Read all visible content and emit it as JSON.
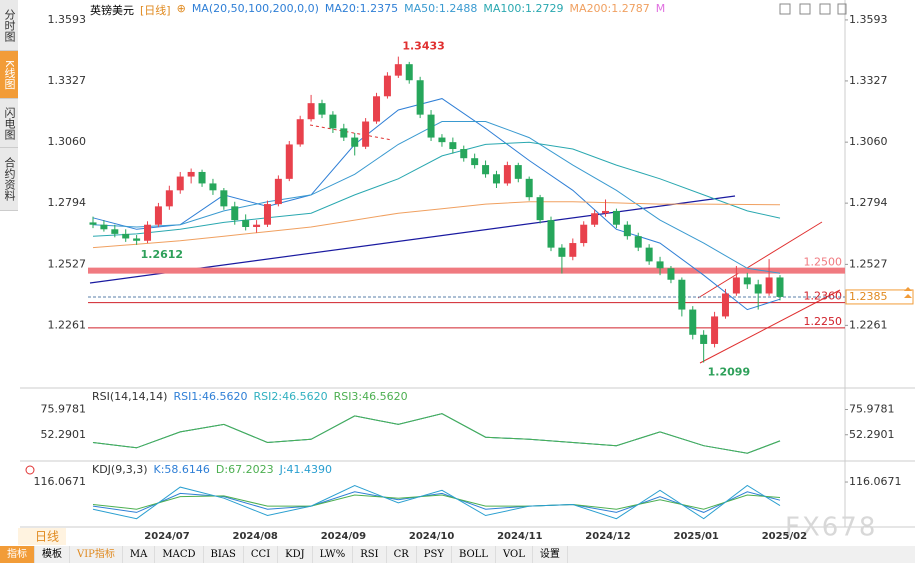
{
  "header": {
    "symbol": "英镑美元",
    "period": "[日线]",
    "indicator": "MA(20,50,100,200,0,0)"
  },
  "sidebar": [
    "分时图",
    "K线图",
    "闪电图",
    "合约资料"
  ],
  "period_label": "日线",
  "toolbar": [
    "指标",
    "模板",
    "VIP指标",
    "MA",
    "MACD",
    "BIAS",
    "CCI",
    "KDJ",
    "LW%",
    "RSI",
    "CR",
    "PSY",
    "BOLL",
    "VOL",
    "设置"
  ],
  "watermark": "FX678",
  "chart_data": [
    {
      "type": "candlestick",
      "up_color": "#e8414c",
      "down_color": "#26a65b",
      "ylim": [
        1.2001,
        1.3645
      ],
      "yticks": [
        1.3593,
        1.3327,
        {
          "value": 1.306,
          "label": "1.3060"
        },
        1.2794,
        1.2527,
        1.2261
      ],
      "categories": [
        "2024/07",
        "2024/08",
        "2024/09",
        "2024/10",
        "2024/11",
        "2024/12",
        "2025/01",
        "2025/02"
      ],
      "candles": [
        [
          1.271,
          1.2735,
          1.2685,
          1.27
        ],
        [
          1.27,
          1.272,
          1.267,
          1.268
        ],
        [
          1.268,
          1.27,
          1.2645,
          1.266
        ],
        [
          1.266,
          1.268,
          1.2625,
          1.264
        ],
        [
          1.264,
          1.2655,
          1.2612,
          1.263
        ],
        [
          1.263,
          1.2715,
          1.262,
          1.27
        ],
        [
          1.27,
          1.2795,
          1.269,
          1.278
        ],
        [
          1.278,
          1.287,
          1.2765,
          1.285
        ],
        [
          1.285,
          1.293,
          1.2835,
          1.291
        ],
        [
          1.291,
          1.2945,
          1.288,
          1.293
        ],
        [
          1.293,
          1.294,
          1.2865,
          1.288
        ],
        [
          1.288,
          1.29,
          1.283,
          1.285
        ],
        [
          1.285,
          1.286,
          1.2765,
          1.278
        ],
        [
          1.278,
          1.28,
          1.27,
          1.272
        ],
        [
          1.272,
          1.2745,
          1.2675,
          1.269
        ],
        [
          1.269,
          1.272,
          1.2665,
          1.27
        ],
        [
          1.27,
          1.2805,
          1.269,
          1.279
        ],
        [
          1.279,
          1.2915,
          1.278,
          1.29
        ],
        [
          1.29,
          1.3065,
          1.289,
          1.305
        ],
        [
          1.305,
          1.3175,
          1.304,
          1.316
        ],
        [
          1.316,
          1.3266,
          1.315,
          1.323
        ],
        [
          1.323,
          1.3245,
          1.3165,
          1.318
        ],
        [
          1.318,
          1.3195,
          1.31,
          1.312
        ],
        [
          1.312,
          1.314,
          1.3065,
          1.308
        ],
        [
          1.308,
          1.31,
          1.3002,
          1.304
        ],
        [
          1.304,
          1.3165,
          1.303,
          1.315
        ],
        [
          1.315,
          1.3275,
          1.314,
          1.326
        ],
        [
          1.326,
          1.3365,
          1.325,
          1.335
        ],
        [
          1.335,
          1.3433,
          1.334,
          1.34
        ],
        [
          1.34,
          1.341,
          1.3315,
          1.333
        ],
        [
          1.333,
          1.3345,
          1.3165,
          1.318
        ],
        [
          1.318,
          1.32,
          1.3065,
          1.308
        ],
        [
          1.308,
          1.3095,
          1.304,
          1.306
        ],
        [
          1.306,
          1.308,
          1.301,
          1.303
        ],
        [
          1.303,
          1.3045,
          1.2975,
          1.299
        ],
        [
          1.299,
          1.301,
          1.2945,
          1.296
        ],
        [
          1.296,
          1.298,
          1.2905,
          1.292
        ],
        [
          1.292,
          1.2935,
          1.286,
          1.288
        ],
        [
          1.288,
          1.2975,
          1.287,
          1.296
        ],
        [
          1.296,
          1.297,
          1.2885,
          1.29
        ],
        [
          1.29,
          1.291,
          1.2805,
          1.282
        ],
        [
          1.282,
          1.283,
          1.2705,
          1.272
        ],
        [
          1.272,
          1.2735,
          1.2585,
          1.26
        ],
        [
          1.26,
          1.2615,
          1.2487,
          1.256
        ],
        [
          1.256,
          1.264,
          1.2545,
          1.262
        ],
        [
          1.262,
          1.2715,
          1.2605,
          1.27
        ],
        [
          1.27,
          1.2765,
          1.269,
          1.275
        ],
        [
          1.275,
          1.281,
          1.2735,
          1.276
        ],
        [
          1.276,
          1.277,
          1.2685,
          1.27
        ],
        [
          1.27,
          1.2715,
          1.2635,
          1.265
        ],
        [
          1.265,
          1.2665,
          1.2585,
          1.26
        ],
        [
          1.26,
          1.2615,
          1.2525,
          1.254
        ],
        [
          1.254,
          1.256,
          1.248,
          1.251
        ],
        [
          1.251,
          1.252,
          1.2445,
          1.246
        ],
        [
          1.246,
          1.247,
          1.23,
          1.233
        ],
        [
          1.233,
          1.2345,
          1.22,
          1.222
        ],
        [
          1.222,
          1.224,
          1.2099,
          1.218
        ],
        [
          1.218,
          1.232,
          1.2165,
          1.23
        ],
        [
          1.23,
          1.242,
          1.229,
          1.24
        ],
        [
          1.24,
          1.252,
          1.239,
          1.247
        ],
        [
          1.247,
          1.249,
          1.242,
          1.244
        ],
        [
          1.244,
          1.246,
          1.233,
          1.24
        ],
        [
          1.24,
          1.255,
          1.239,
          1.247
        ],
        [
          1.247,
          1.248,
          1.237,
          1.2385
        ]
      ],
      "x": [
        0,
        4,
        8,
        12,
        16,
        20,
        24,
        28,
        32,
        36,
        40,
        44,
        48,
        52,
        56,
        60,
        63
      ],
      "series": [
        {
          "name": "MA20:1.2375",
          "color": "#2f7fd6",
          "values": [
            1.273,
            1.268,
            1.27,
            1.283,
            1.278,
            1.283,
            1.305,
            1.32,
            1.325,
            1.312,
            1.298,
            1.285,
            1.268,
            1.262,
            1.248,
            1.233,
            1.2375
          ]
        },
        {
          "name": "MA50:1.2488",
          "color": "#3a9ad0",
          "values": [
            1.27,
            1.269,
            1.27,
            1.276,
            1.28,
            1.283,
            1.292,
            1.305,
            1.315,
            1.315,
            1.308,
            1.296,
            1.285,
            1.272,
            1.262,
            1.251,
            1.2488
          ]
        },
        {
          "name": "MA100:1.2729",
          "color": "#2aa8b0",
          "values": [
            1.265,
            1.266,
            1.268,
            1.271,
            1.273,
            1.275,
            1.283,
            1.29,
            1.3,
            1.305,
            1.306,
            1.303,
            1.296,
            1.29,
            1.283,
            1.276,
            1.2729
          ]
        },
        {
          "name": "MA200:1.2787",
          "color": "#f0a060",
          "values": [
            1.26,
            1.2615,
            1.263,
            1.265,
            1.267,
            1.269,
            1.272,
            1.275,
            1.277,
            1.279,
            1.28,
            1.28,
            1.2795,
            1.279,
            1.279,
            1.2788,
            1.2787
          ]
        }
      ],
      "legend_more": "M",
      "hlines": [
        {
          "value": 1.25,
          "label": "1.2500",
          "color": "#f07a80"
        },
        {
          "value": 1.236,
          "label": "1.2360",
          "color": "#d0202a"
        },
        {
          "value": 1.225,
          "label": "1.2250",
          "color": "#d0202a"
        }
      ],
      "last_price": 1.2385,
      "annotations": [
        {
          "value": 1.3433,
          "color": "#e03030"
        },
        {
          "value": 1.2612,
          "color": "#2ea05a"
        },
        {
          "value": 1.2099,
          "color": "#2ea05a"
        }
      ]
    },
    {
      "type": "line",
      "title": "RSI(14,14,14)",
      "ylim": [
        28.6,
        92.4
      ],
      "yticks": [
        75.9781,
        52.2901
      ],
      "x": [
        0,
        4,
        8,
        12,
        16,
        20,
        24,
        28,
        32,
        36,
        40,
        44,
        48,
        52,
        56,
        60,
        63
      ],
      "series": [
        {
          "name": "RSI1:46.5620",
          "color": "#2f7fd6",
          "values": [
            45,
            40,
            55,
            62,
            45,
            48,
            70,
            62,
            72,
            50,
            48,
            45,
            42,
            55,
            42,
            35,
            46.562
          ]
        },
        {
          "name": "RSI2:46.5620",
          "color": "#30b0c0",
          "values": [
            45,
            40,
            55,
            62,
            45,
            48,
            70,
            62,
            72,
            50,
            48,
            45,
            42,
            55,
            42,
            35,
            46.562
          ]
        },
        {
          "name": "RSI3:46.5620",
          "color": "#4caf50",
          "values": [
            45,
            40,
            55,
            62,
            45,
            48,
            70,
            62,
            72,
            50,
            48,
            45,
            42,
            55,
            42,
            35,
            46.562
          ]
        }
      ]
    },
    {
      "type": "line",
      "title": "KDJ(9,3,3)",
      "ylim": [
        -20,
        170
      ],
      "yticks": [
        116.0671
      ],
      "x": [
        0,
        4,
        8,
        12,
        16,
        20,
        24,
        28,
        32,
        36,
        40,
        44,
        48,
        52,
        56,
        60,
        63
      ],
      "series": [
        {
          "name": "K:58.6146",
          "color": "#2f7fd6",
          "values": [
            40,
            20,
            80,
            70,
            30,
            40,
            85,
            60,
            80,
            30,
            40,
            45,
            20,
            70,
            20,
            85,
            58.6146
          ]
        },
        {
          "name": "D:67.2023",
          "color": "#4caf50",
          "values": [
            45,
            30,
            70,
            72,
            40,
            40,
            75,
            65,
            75,
            40,
            40,
            45,
            30,
            60,
            30,
            75,
            67.2023
          ]
        },
        {
          "name": "J:41.4390",
          "color": "#2a9fd0",
          "values": [
            30,
            0,
            100,
            65,
            10,
            40,
            105,
            50,
            90,
            10,
            40,
            45,
            0,
            90,
            0,
            105,
            41.439
          ]
        }
      ]
    }
  ]
}
